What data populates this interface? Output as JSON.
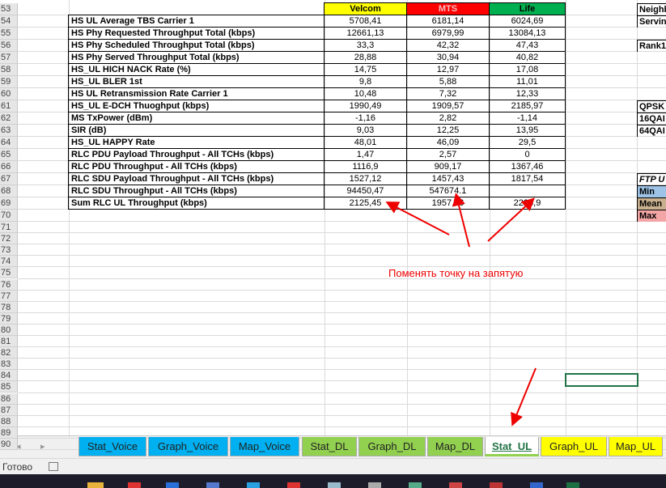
{
  "row_numbers": [
    53,
    54,
    55,
    56,
    57,
    58,
    59,
    60,
    61,
    62,
    63,
    64,
    65,
    66,
    67,
    68,
    69,
    70,
    71,
    72,
    73,
    74,
    75,
    76,
    77,
    78,
    79,
    80,
    81,
    82,
    83,
    84,
    85,
    86,
    87,
    88,
    89,
    90
  ],
  "table": {
    "header": [
      "Velcom",
      "MTS",
      "Life"
    ],
    "rows": [
      [
        "HS UL Average TBS Carrier 1",
        "5708,41",
        "6181,14",
        "6024,69"
      ],
      [
        "HS Phy Requested Throughput Total (kbps)",
        "12661,13",
        "6979,99",
        "13084,13"
      ],
      [
        "HS Phy Scheduled Throughput Total (kbps)",
        "33,3",
        "42,32",
        "47,43"
      ],
      [
        "HS Phy Served Throughput Total (kbps)",
        "28,88",
        "30,94",
        "40,82"
      ],
      [
        "HS_UL HICH NACK Rate (%)",
        "14,75",
        "12,97",
        "17,08"
      ],
      [
        "HS_UL BLER 1st",
        "9,8",
        "5,88",
        "11,01"
      ],
      [
        "HS UL Retransmission Rate Carrier 1",
        "10,48",
        "7,32",
        "12,33"
      ],
      [
        "HS_UL E-DCH Thuoghput (kbps)",
        "1990,49",
        "1909,57",
        "2185,97"
      ],
      [
        "MS TxPower (dBm)",
        "-1,16",
        "2,82",
        "-1,14"
      ],
      [
        "SIR (dB)",
        "9,03",
        "12,25",
        "13,95"
      ],
      [
        "HS_UL HAPPY Rate",
        "48,01",
        "46,09",
        "29,5"
      ],
      [
        "RLC PDU Payload Throughput - All TCHs (kbps)",
        "1,47",
        "2,57",
        "0"
      ],
      [
        "RLC PDU Throughput - All TCHs (kbps)",
        "1116,9",
        "909,17",
        "1367,46"
      ],
      [
        "RLC SDU Payload Throughput - All TCHs (kbps)",
        "1527,12",
        "1457,43",
        "1817,54"
      ],
      [
        "RLC SDU Throughput - All TCHs (kbps)",
        "94450,47",
        "547674.1",
        ""
      ],
      [
        "Sum RLC UL Throughput (kbps)",
        "2125,45",
        "1957,06",
        "2223,9"
      ]
    ]
  },
  "side_labels": [
    {
      "row": 53,
      "text": "Neighb"
    },
    {
      "row": 54,
      "text": "Servin"
    },
    {
      "row": 56,
      "text": "Rank1"
    },
    {
      "row": 61,
      "text": "QPSK"
    },
    {
      "row": 62,
      "text": "16QAI"
    },
    {
      "row": 63,
      "text": "64QAI"
    },
    {
      "row": 67,
      "text": "FTP U"
    },
    {
      "row": 68,
      "text": "Min"
    },
    {
      "row": 69,
      "text": "Mean"
    },
    {
      "row": 70,
      "text": "Max"
    }
  ],
  "annotation": "Поменять точку на запятую",
  "sheet_tabs": [
    "Stat_Voice",
    "Graph_Voice",
    "Map_Voice",
    "Stat_DL",
    "Graph_DL",
    "Map_DL",
    "Stat_UL",
    "Graph_UL",
    "Map_UL"
  ],
  "status": "Готово"
}
